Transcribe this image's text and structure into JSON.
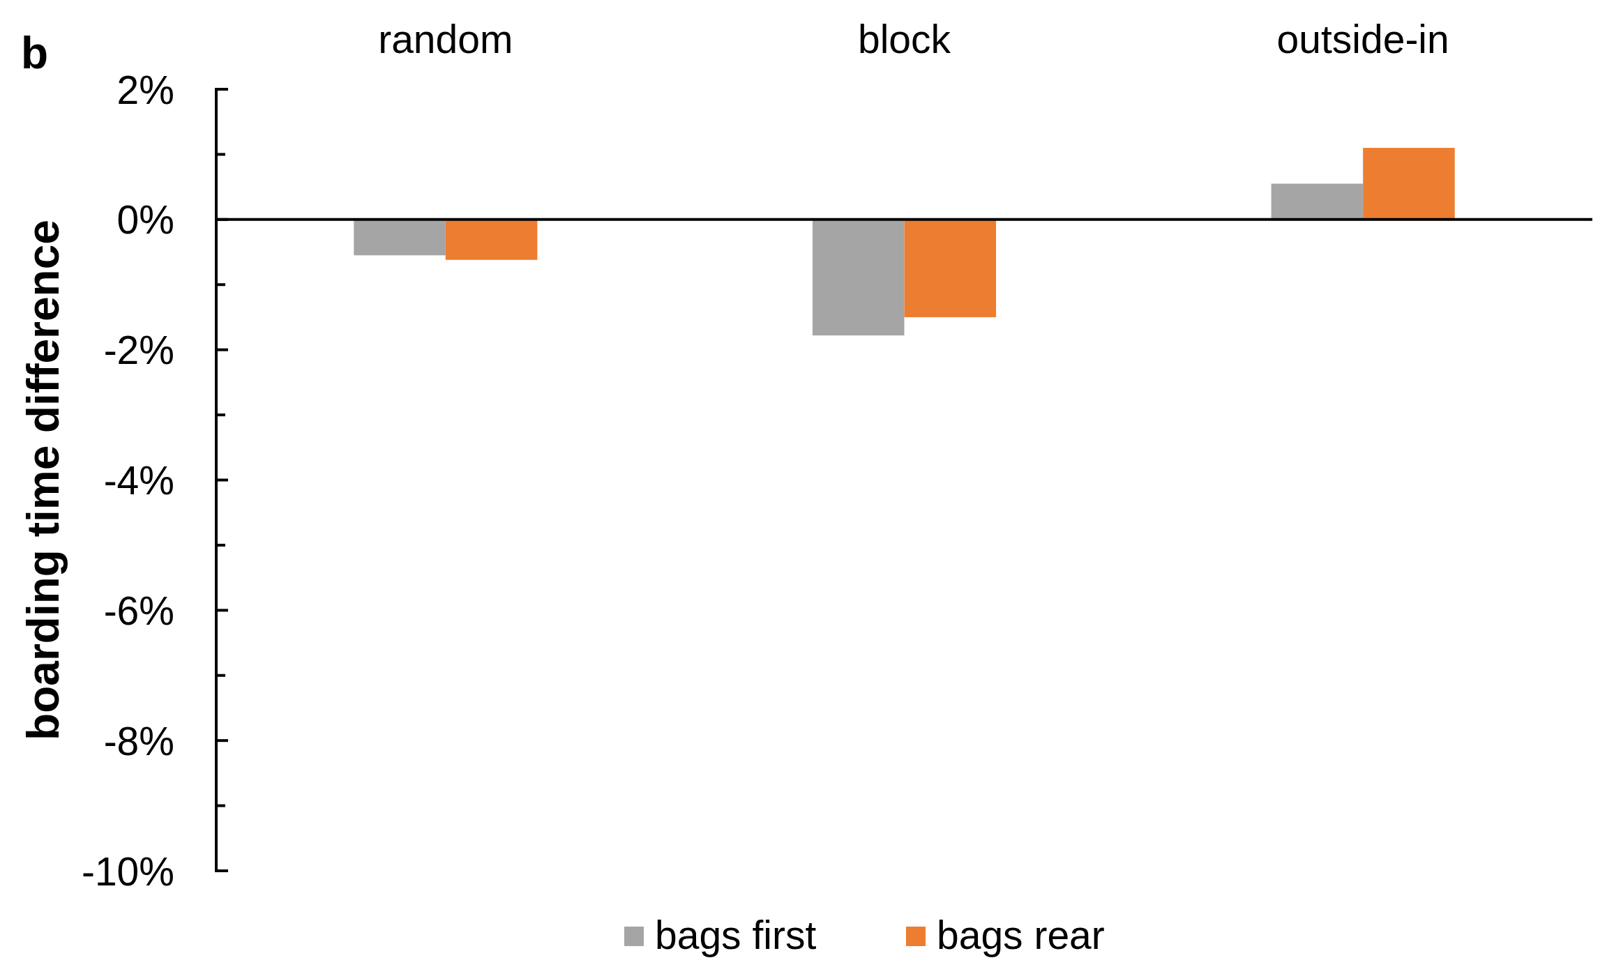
{
  "chart_data": {
    "type": "bar",
    "title": "b",
    "ylabel": "boarding time difference",
    "categories": [
      "random",
      "block",
      "outside-in"
    ],
    "series": [
      {
        "name": "bags first",
        "color": "#a5a5a5",
        "values": [
          -0.55,
          -1.78,
          0.55
        ]
      },
      {
        "name": "bags rear",
        "color": "#ed7d31",
        "values": [
          -0.62,
          -1.5,
          1.1
        ]
      }
    ],
    "ylim": [
      -10,
      2
    ],
    "yticks": [
      {
        "value": 2,
        "label": "2%"
      },
      {
        "value": 1,
        "label": null
      },
      {
        "value": 0,
        "label": "0%"
      },
      {
        "value": -1,
        "label": null
      },
      {
        "value": -2,
        "label": "-2%"
      },
      {
        "value": -3,
        "label": null
      },
      {
        "value": -4,
        "label": "-4%"
      },
      {
        "value": -5,
        "label": null
      },
      {
        "value": -6,
        "label": "-6%"
      },
      {
        "value": -7,
        "label": null
      },
      {
        "value": -8,
        "label": "-8%"
      },
      {
        "value": -9,
        "label": null
      },
      {
        "value": -10,
        "label": "-10%"
      }
    ],
    "legend": "bottom"
  }
}
